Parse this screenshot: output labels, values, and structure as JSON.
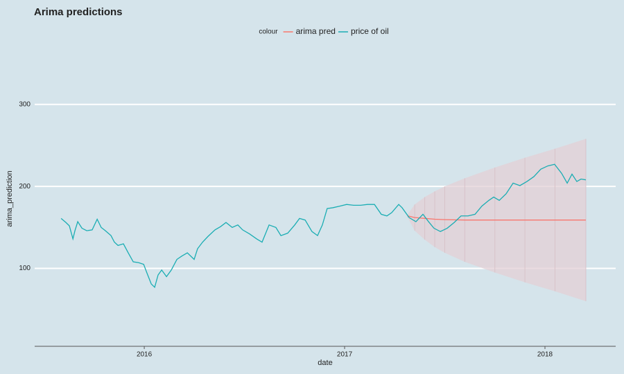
{
  "chart_data": {
    "type": "line",
    "title": "Arima predictions",
    "x_label": "date",
    "y_label": "arima_prediction",
    "legend_title": "colour",
    "legend_position": "top",
    "grid": true,
    "xlim": [
      2015.453,
      2018.353
    ],
    "ylim": [
      5,
      375
    ],
    "xticks": [
      2016,
      2017,
      2018
    ],
    "yticks": [
      100,
      200,
      300
    ],
    "series": [
      {
        "name": "arima pred",
        "color": "#F8766D",
        "band_color": "#e3d0d6",
        "x": [
          2017.315,
          2017.35,
          2017.4,
          2017.45,
          2017.5,
          2017.6,
          2017.75,
          2017.9,
          2018.05,
          2018.204
        ],
        "values": [
          164,
          162,
          161,
          160,
          159.5,
          159,
          159,
          159,
          159,
          159
        ],
        "lower": [
          162,
          146,
          135,
          126,
          119,
          108,
          95,
          83,
          72,
          60
        ],
        "upper": [
          166,
          178,
          187,
          194,
          200,
          210,
          223,
          235,
          246,
          258
        ]
      },
      {
        "name": "price of oil",
        "color": "#1aadb3",
        "x": [
          2015.585,
          2015.609,
          2015.626,
          2015.644,
          2015.654,
          2015.668,
          2015.689,
          2015.713,
          2015.74,
          2015.765,
          2015.785,
          2015.806,
          2015.834,
          2015.851,
          2015.869,
          2015.896,
          2015.92,
          2015.945,
          2015.972,
          2015.997,
          2016.014,
          2016.035,
          2016.052,
          2016.069,
          2016.087,
          2016.111,
          2016.135,
          2016.163,
          2016.187,
          2016.215,
          2016.249,
          2016.266,
          2016.291,
          2016.318,
          2016.353,
          2016.381,
          2016.408,
          2016.439,
          2016.467,
          2016.491,
          2016.526,
          2016.561,
          2016.588,
          2016.623,
          2016.657,
          2016.682,
          2016.716,
          2016.751,
          2016.775,
          2016.803,
          2016.837,
          2016.865,
          2016.889,
          2016.913,
          2016.941,
          2016.976,
          2017.01,
          2017.045,
          2017.08,
          2017.114,
          2017.149,
          2017.183,
          2017.211,
          2017.235,
          2017.27,
          2017.287,
          2017.322,
          2017.356,
          2017.391,
          2017.419,
          2017.446,
          2017.478,
          2017.512,
          2017.547,
          2017.581,
          2017.616,
          2017.651,
          2017.685,
          2017.72,
          2017.744,
          2017.772,
          2017.806,
          2017.841,
          2017.875,
          2017.91,
          2017.945,
          2017.979,
          2018.014,
          2018.048,
          2018.083,
          2018.111,
          2018.135,
          2018.159,
          2018.18,
          2018.204
        ],
        "values": [
          161,
          156,
          152,
          136,
          146,
          157,
          149,
          146,
          147,
          160,
          150,
          146,
          140,
          132,
          128,
          130,
          119,
          108,
          107,
          105,
          94,
          81,
          77,
          92,
          98,
          90,
          98,
          111,
          115,
          119,
          111,
          124,
          132,
          139,
          147,
          151,
          156,
          150,
          153,
          147,
          142,
          136,
          132,
          153,
          150,
          140,
          143,
          153,
          161,
          159,
          145,
          140,
          153,
          173,
          174,
          176,
          178,
          177,
          177,
          178,
          178,
          166,
          164,
          168,
          178,
          174,
          162,
          157,
          166,
          157,
          149,
          145,
          149,
          156,
          164,
          164,
          166,
          176,
          183,
          187,
          183,
          191,
          204,
          201,
          206,
          212,
          221,
          225,
          227,
          216,
          204,
          215,
          206,
          209,
          208
        ]
      }
    ]
  }
}
